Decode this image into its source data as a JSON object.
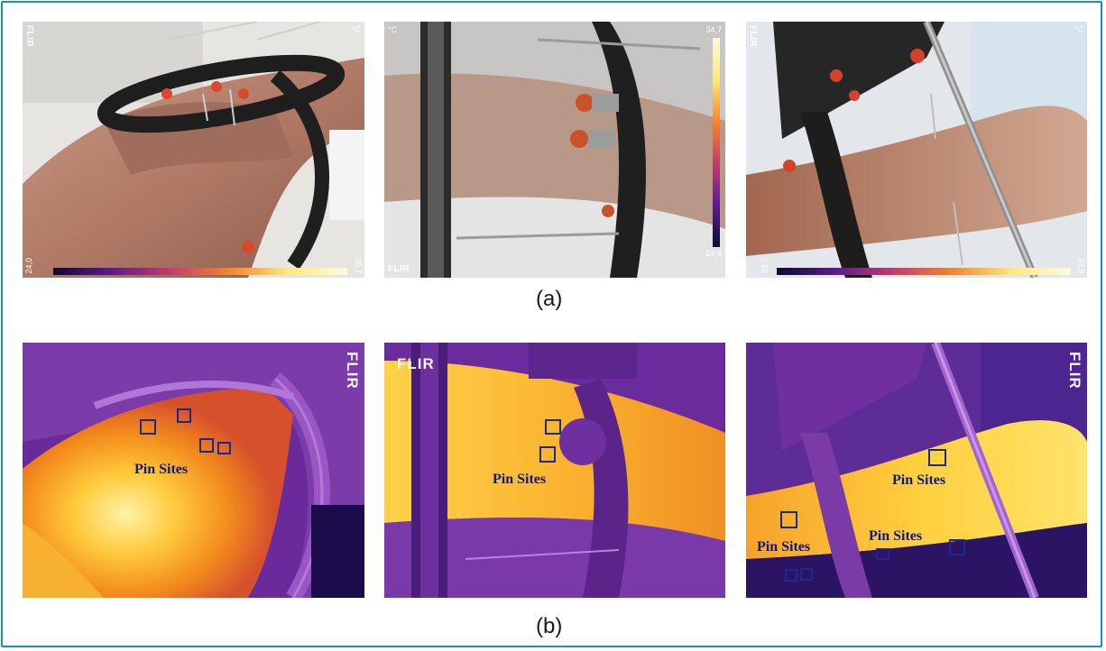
{
  "captions": {
    "a": "(a)",
    "b": "(b)"
  },
  "brand": "FLIR",
  "visual_images": [
    {
      "unit": "°C",
      "scale_min": "24,0",
      "scale_max": "35,7"
    },
    {
      "unit": "°C",
      "scale_min": "24,6",
      "scale_max": "34,7"
    },
    {
      "unit": "°C",
      "scale_min": "23,7",
      "scale_max": "34,8"
    }
  ],
  "thermal_images": [
    {
      "labels": [
        "Pin Sites"
      ]
    },
    {
      "labels": [
        "Pin Sites"
      ]
    },
    {
      "labels": [
        "Pin Sites",
        "Pin Sites",
        "Pin Sites"
      ]
    }
  ],
  "colors": {
    "frame": "#1b8fc0",
    "pin_box": "#1c2a8c",
    "pin_label": "#0d1a80"
  }
}
